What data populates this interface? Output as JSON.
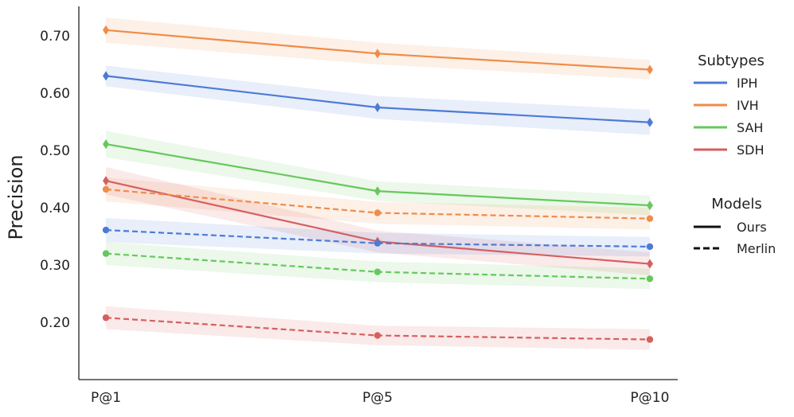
{
  "chart_data": {
    "type": "line",
    "title": "",
    "xlabel": "",
    "ylabel": "Precision",
    "categories": [
      "P@1",
      "P@5",
      "P@10"
    ],
    "ylim": [
      0.1,
      0.75
    ],
    "yticks": [
      0.2,
      0.3,
      0.4,
      0.5,
      0.6,
      0.7
    ],
    "ytick_labels": [
      "0.20",
      "0.30",
      "0.40",
      "0.50",
      "0.60",
      "0.70"
    ],
    "grid": false,
    "legend_position": "right",
    "legend": {
      "subtypes_title": "Subtypes",
      "subtypes": [
        {
          "label": "IPH",
          "color": "#4c7bd6"
        },
        {
          "label": "IVH",
          "color": "#f08c48"
        },
        {
          "label": "SAH",
          "color": "#66c85c"
        },
        {
          "label": "SDH",
          "color": "#d65f5f"
        }
      ],
      "models_title": "Models",
      "models": [
        {
          "label": "Ours",
          "style": "solid"
        },
        {
          "label": "Merlin",
          "style": "dashed"
        }
      ]
    },
    "series": [
      {
        "subtype": "IPH",
        "model": "Ours",
        "color": "#4c7bd6",
        "style": "solid",
        "marker": "diamond",
        "values": [
          0.63,
          0.575,
          0.549
        ],
        "ci_low": [
          0.612,
          0.555,
          0.527
        ],
        "ci_high": [
          0.648,
          0.595,
          0.571
        ]
      },
      {
        "subtype": "IVH",
        "model": "Ours",
        "color": "#f08c48",
        "style": "solid",
        "marker": "diamond",
        "values": [
          0.71,
          0.669,
          0.641
        ],
        "ci_low": [
          0.688,
          0.65,
          0.624
        ],
        "ci_high": [
          0.732,
          0.688,
          0.658
        ]
      },
      {
        "subtype": "SAH",
        "model": "Ours",
        "color": "#66c85c",
        "style": "solid",
        "marker": "diamond",
        "values": [
          0.511,
          0.429,
          0.404
        ],
        "ci_low": [
          0.488,
          0.412,
          0.387
        ],
        "ci_high": [
          0.534,
          0.446,
          0.421
        ]
      },
      {
        "subtype": "SDH",
        "model": "Ours",
        "color": "#d65f5f",
        "style": "solid",
        "marker": "diamond",
        "values": [
          0.447,
          0.341,
          0.302
        ],
        "ci_low": [
          0.423,
          0.322,
          0.282
        ],
        "ci_high": [
          0.471,
          0.36,
          0.322
        ]
      },
      {
        "subtype": "IPH",
        "model": "Merlin",
        "color": "#4c7bd6",
        "style": "dashed",
        "marker": "circle",
        "values": [
          0.361,
          0.338,
          0.332
        ],
        "ci_low": [
          0.34,
          0.32,
          0.315
        ],
        "ci_high": [
          0.382,
          0.356,
          0.349
        ]
      },
      {
        "subtype": "IVH",
        "model": "Merlin",
        "color": "#f08c48",
        "style": "dashed",
        "marker": "circle",
        "values": [
          0.432,
          0.391,
          0.381
        ],
        "ci_low": [
          0.411,
          0.372,
          0.362
        ],
        "ci_high": [
          0.453,
          0.41,
          0.4
        ]
      },
      {
        "subtype": "SAH",
        "model": "Merlin",
        "color": "#66c85c",
        "style": "dashed",
        "marker": "circle",
        "values": [
          0.32,
          0.288,
          0.276
        ],
        "ci_low": [
          0.3,
          0.27,
          0.258
        ],
        "ci_high": [
          0.34,
          0.306,
          0.294
        ]
      },
      {
        "subtype": "SDH",
        "model": "Merlin",
        "color": "#d65f5f",
        "style": "dashed",
        "marker": "circle",
        "values": [
          0.208,
          0.177,
          0.17
        ],
        "ci_low": [
          0.188,
          0.16,
          0.152
        ],
        "ci_high": [
          0.228,
          0.194,
          0.188
        ]
      }
    ]
  }
}
